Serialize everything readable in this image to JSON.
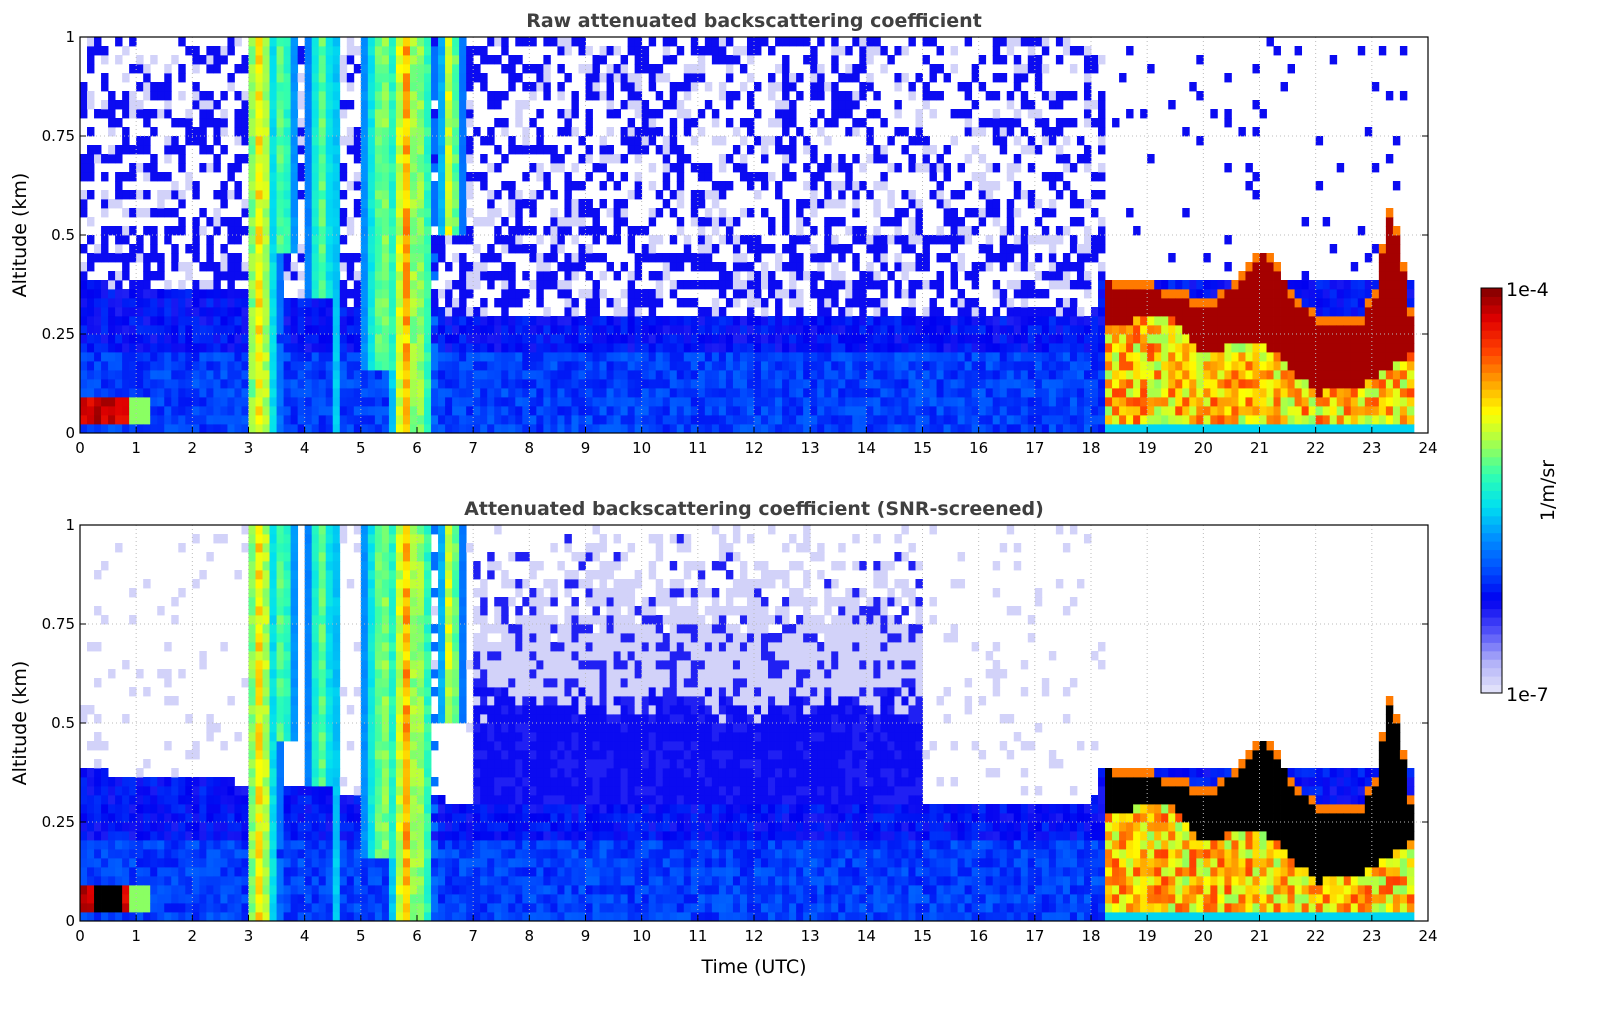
{
  "chart_data": [
    {
      "type": "heatmap",
      "title": "Raw attenuated backscattering coefficient",
      "xlabel": "",
      "ylabel": "Altitude (km)",
      "xlim": [
        0,
        24
      ],
      "ylim": [
        0,
        1
      ],
      "xticks": [
        "0",
        "1",
        "2",
        "3",
        "4",
        "5",
        "6",
        "7",
        "8",
        "9",
        "10",
        "11",
        "12",
        "13",
        "14",
        "15",
        "16",
        "17",
        "18",
        "19",
        "20",
        "21",
        "22",
        "23",
        "24"
      ],
      "yticks": [
        "0",
        "0.25",
        "0.5",
        "0.75",
        "1"
      ],
      "grid": true,
      "screened": false
    },
    {
      "type": "heatmap",
      "title": "Attenuated backscattering coefficient (SNR-screened)",
      "xlabel": "Time (UTC)",
      "ylabel": "Altitude (km)",
      "xlim": [
        0,
        24
      ],
      "ylim": [
        0,
        1
      ],
      "xticks": [
        "0",
        "1",
        "2",
        "3",
        "4",
        "5",
        "6",
        "7",
        "8",
        "9",
        "10",
        "11",
        "12",
        "13",
        "14",
        "15",
        "16",
        "17",
        "18",
        "19",
        "20",
        "21",
        "22",
        "23",
        "24"
      ],
      "yticks": [
        "0",
        "0.25",
        "0.5",
        "0.75",
        "1"
      ],
      "grid": true,
      "screened": true
    }
  ],
  "colorbar": {
    "label": "1/m/sr",
    "max_label": "1e-4",
    "min_label": "1e-7",
    "log_range": [
      -7,
      -4
    ],
    "colors": [
      "#e8e8fa",
      "#b0b0f8",
      "#5050f8",
      "#0000f0",
      "#0050ff",
      "#0090ff",
      "#00e0f0",
      "#30ffb0",
      "#a0ff50",
      "#ffff00",
      "#ffa000",
      "#ff4000",
      "#e00000",
      "#800000"
    ]
  },
  "features": {
    "boundary_layer_top_km": [
      [
        0,
        0.38
      ],
      [
        3,
        0.35
      ],
      [
        7,
        0.3
      ],
      [
        18,
        0.3
      ],
      [
        18.2,
        0.38
      ]
    ],
    "fog_columns": [
      {
        "t_center": 3.2,
        "width_h": 0.25,
        "intensity": 0.75,
        "base_km": 0.0
      },
      {
        "t_center": 3.6,
        "width_h": 0.2,
        "intensity": 0.5,
        "base_km": 0.45
      },
      {
        "t_center": 4.3,
        "width_h": 0.2,
        "intensity": 0.5,
        "base_km": 0.35
      },
      {
        "t_center": 4.6,
        "width_h": 0.05,
        "intensity": 0.45,
        "base_km": 0.0
      },
      {
        "t_center": 5.4,
        "width_h": 0.3,
        "intensity": 0.55,
        "base_km": 0.15
      },
      {
        "t_center": 5.8,
        "width_h": 0.22,
        "intensity": 0.85,
        "base_km": 0.0
      },
      {
        "t_center": 6.1,
        "width_h": 0.15,
        "intensity": 0.6,
        "base_km": 0.0
      },
      {
        "t_center": 6.6,
        "width_h": 0.15,
        "intensity": 0.7,
        "base_km": 0.5
      }
    ],
    "near_ground_aerosol": {
      "t_range": [
        0,
        1.2
      ],
      "z_range": [
        0.02,
        0.08
      ]
    },
    "low_cloud_top_km": [
      [
        18.2,
        0.4
      ],
      [
        19,
        0.38
      ],
      [
        19.6,
        0.36
      ],
      [
        20,
        0.33
      ],
      [
        20.5,
        0.38
      ],
      [
        21.1,
        0.47
      ],
      [
        21.6,
        0.36
      ],
      [
        22,
        0.3
      ],
      [
        22.8,
        0.3
      ],
      [
        23.1,
        0.38
      ],
      [
        23.3,
        0.58
      ],
      [
        23.5,
        0.5
      ],
      [
        23.7,
        0.3
      ]
    ],
    "low_cloud_base_km": [
      [
        18.2,
        0.28
      ],
      [
        19.5,
        0.29
      ],
      [
        20,
        0.2
      ],
      [
        21,
        0.24
      ],
      [
        21.5,
        0.17
      ],
      [
        22,
        0.1
      ],
      [
        22.8,
        0.12
      ],
      [
        23.5,
        0.18
      ],
      [
        23.7,
        0.2
      ]
    ],
    "data_end_hour": 23.75
  }
}
